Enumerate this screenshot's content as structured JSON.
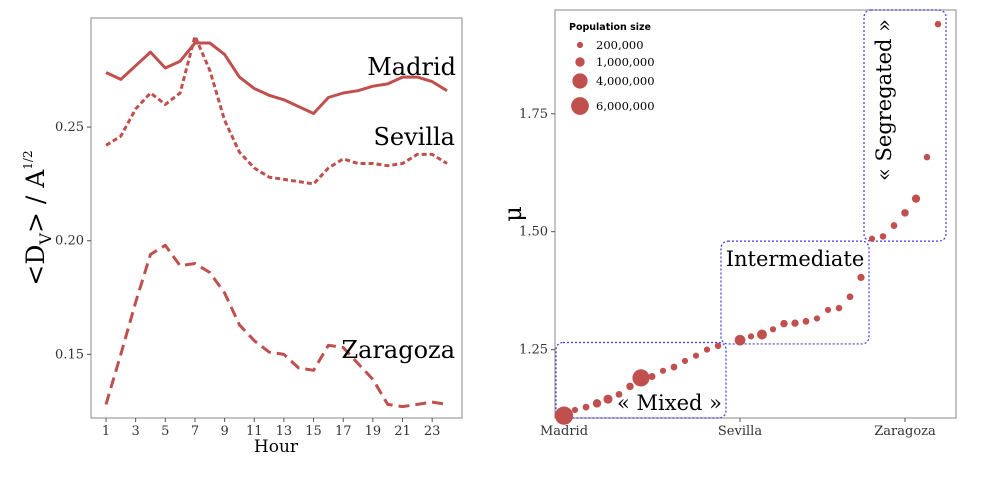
{
  "chart_data": [
    {
      "type": "line",
      "xlabel": "Hour",
      "ylabel": "<D_V> / A^(1/2)",
      "ylabel_parts": {
        "main": "<D",
        "sub": "V",
        "mid": "> / A",
        "sup": "1/2"
      },
      "xlim": [
        1,
        24
      ],
      "ylim": [
        0.122,
        0.298
      ],
      "xticks": [
        1,
        3,
        5,
        7,
        9,
        11,
        13,
        15,
        17,
        19,
        21,
        23
      ],
      "yticks": [
        0.15,
        0.2,
        0.25
      ],
      "ytick_labels": [
        "0.15",
        "0.20",
        "0.25"
      ],
      "x": [
        1,
        2,
        3,
        4,
        5,
        6,
        7,
        8,
        9,
        10,
        11,
        12,
        13,
        14,
        15,
        16,
        17,
        18,
        19,
        20,
        21,
        22,
        23,
        24
      ],
      "series": [
        {
          "name": "Madrid",
          "style": "solid",
          "color": "#c0504d",
          "values": [
            0.274,
            0.271,
            0.277,
            0.283,
            0.276,
            0.279,
            0.287,
            0.287,
            0.282,
            0.272,
            0.267,
            0.264,
            0.262,
            0.259,
            0.256,
            0.263,
            0.265,
            0.266,
            0.268,
            0.269,
            0.272,
            0.272,
            0.27,
            0.266
          ]
        },
        {
          "name": "Sevilla",
          "style": "dotted",
          "color": "#c0504d",
          "values": [
            0.242,
            0.246,
            0.258,
            0.265,
            0.26,
            0.265,
            0.29,
            0.275,
            0.253,
            0.239,
            0.232,
            0.228,
            0.227,
            0.226,
            0.225,
            0.232,
            0.236,
            0.234,
            0.234,
            0.233,
            0.234,
            0.238,
            0.238,
            0.234
          ]
        },
        {
          "name": "Zaragoza",
          "style": "dashed",
          "color": "#c0504d",
          "values": [
            0.128,
            0.15,
            0.173,
            0.194,
            0.198,
            0.189,
            0.19,
            0.186,
            0.177,
            0.163,
            0.156,
            0.151,
            0.15,
            0.144,
            0.143,
            0.154,
            0.153,
            0.146,
            0.139,
            0.128,
            0.127,
            0.128,
            0.129,
            0.128
          ]
        }
      ]
    },
    {
      "type": "scatter",
      "ylabel": "μ",
      "ylim": [
        1.105,
        1.97
      ],
      "yticks": [
        1.25,
        1.5,
        1.75
      ],
      "ytick_labels": [
        "1.25",
        "1.50",
        "1.75"
      ],
      "xticks_labels": [
        "Madrid",
        "Sevilla",
        "Zaragoza"
      ],
      "xtick_ranks": [
        1,
        17,
        32
      ],
      "n_cities": 34,
      "color": "#c0504d",
      "legend": {
        "title": "Population size",
        "items": [
          {
            "label": "200,000",
            "pop": 200000
          },
          {
            "label": "1,000,000",
            "pop": 1000000
          },
          {
            "label": "4,000,000",
            "pop": 4000000
          },
          {
            "label": "6,000,000",
            "pop": 6000000
          }
        ]
      },
      "points": [
        {
          "rank": 1,
          "mu": 1.11,
          "pop": 6400000
        },
        {
          "rank": 2,
          "mu": 1.122,
          "pop": 200000
        },
        {
          "rank": 3,
          "mu": 1.128,
          "pop": 300000
        },
        {
          "rank": 4,
          "mu": 1.136,
          "pop": 700000
        },
        {
          "rank": 5,
          "mu": 1.145,
          "pop": 900000
        },
        {
          "rank": 6,
          "mu": 1.155,
          "pop": 300000
        },
        {
          "rank": 7,
          "mu": 1.172,
          "pop": 450000
        },
        {
          "rank": 8,
          "mu": 1.19,
          "pop": 5500000
        },
        {
          "rank": 9,
          "mu": 1.193,
          "pop": 350000
        },
        {
          "rank": 10,
          "mu": 1.205,
          "pop": 200000
        },
        {
          "rank": 11,
          "mu": 1.213,
          "pop": 300000
        },
        {
          "rank": 12,
          "mu": 1.226,
          "pop": 200000
        },
        {
          "rank": 13,
          "mu": 1.237,
          "pop": 200000
        },
        {
          "rank": 14,
          "mu": 1.25,
          "pop": 200000
        },
        {
          "rank": 15,
          "mu": 1.258,
          "pop": 250000
        },
        {
          "rank": 17,
          "mu": 1.27,
          "pop": 1500000
        },
        {
          "rank": 18,
          "mu": 1.278,
          "pop": 200000
        },
        {
          "rank": 19,
          "mu": 1.282,
          "pop": 1200000
        },
        {
          "rank": 20,
          "mu": 1.293,
          "pop": 200000
        },
        {
          "rank": 21,
          "mu": 1.305,
          "pop": 450000
        },
        {
          "rank": 22,
          "mu": 1.306,
          "pop": 400000
        },
        {
          "rank": 23,
          "mu": 1.31,
          "pop": 300000
        },
        {
          "rank": 24,
          "mu": 1.316,
          "pop": 200000
        },
        {
          "rank": 25,
          "mu": 1.334,
          "pop": 200000
        },
        {
          "rank": 26,
          "mu": 1.338,
          "pop": 250000
        },
        {
          "rank": 27,
          "mu": 1.362,
          "pop": 300000
        },
        {
          "rank": 28,
          "mu": 1.403,
          "pop": 400000
        },
        {
          "rank": 29,
          "mu": 1.485,
          "pop": 200000
        },
        {
          "rank": 30,
          "mu": 1.49,
          "pop": 250000
        },
        {
          "rank": 31,
          "mu": 1.513,
          "pop": 300000
        },
        {
          "rank": 32,
          "mu": 1.54,
          "pop": 450000
        },
        {
          "rank": 33,
          "mu": 1.57,
          "pop": 650000
        },
        {
          "rank": 34,
          "mu": 1.658,
          "pop": 250000
        },
        {
          "rank": 35,
          "mu": 1.94,
          "pop": 250000
        }
      ],
      "groups": [
        {
          "label": "« Mixed »",
          "from_rank": 1,
          "to_rank": 15,
          "mu_lo": 1.105,
          "mu_hi": 1.265,
          "orientation": "horizontal"
        },
        {
          "label": "Intermediate",
          "from_rank": 16,
          "to_rank": 28,
          "mu_lo": 1.262,
          "mu_hi": 1.48,
          "orientation": "horizontal"
        },
        {
          "label": "« Segregated »",
          "from_rank": 29,
          "to_rank": 35,
          "mu_lo": 1.48,
          "mu_hi": 1.97,
          "orientation": "vertical"
        }
      ]
    }
  ]
}
